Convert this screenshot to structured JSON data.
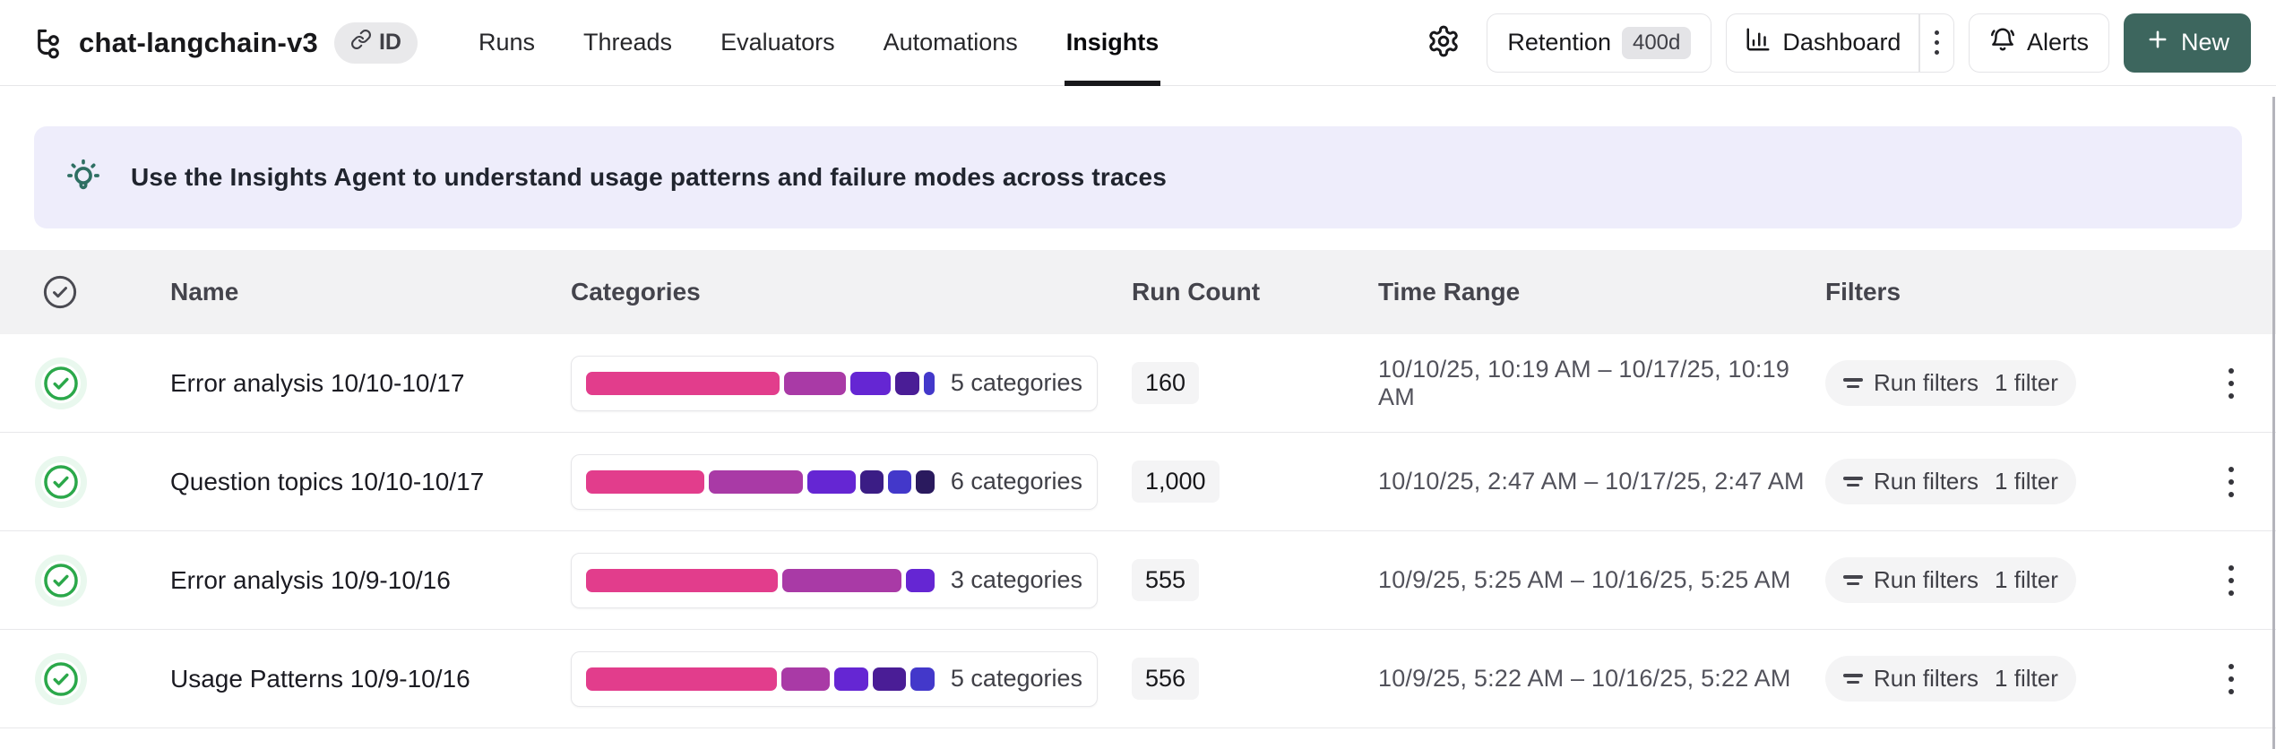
{
  "header": {
    "title": "chat-langchain-v3",
    "id_badge_label": "ID",
    "tabs": [
      {
        "label": "Runs",
        "active": false
      },
      {
        "label": "Threads",
        "active": false
      },
      {
        "label": "Evaluators",
        "active": false
      },
      {
        "label": "Automations",
        "active": false
      },
      {
        "label": "Insights",
        "active": true
      }
    ],
    "actions": {
      "retention_label": "Retention",
      "retention_value": "400d",
      "dashboard_label": "Dashboard",
      "alerts_label": "Alerts",
      "new_label": "New"
    }
  },
  "banner": {
    "text": "Use the Insights Agent to understand usage patterns and failure modes across traces"
  },
  "table": {
    "columns": {
      "name": "Name",
      "categories": "Categories",
      "run_count": "Run Count",
      "time_range": "Time Range",
      "filters": "Filters"
    },
    "rows": [
      {
        "name": "Error analysis 10/10-10/17",
        "categories_label": "5 categories",
        "run_count": "160",
        "time_range": "10/10/25, 10:19 AM – 10/17/25, 10:19 AM",
        "filters_label": "Run filters",
        "filters_count": "1 filter",
        "segments": [
          {
            "color": "#e23d8c",
            "pct": 56
          },
          {
            "color": "#a93aa6",
            "pct": 18
          },
          {
            "color": "#6526d3",
            "pct": 11.5
          },
          {
            "color": "#4a1d96",
            "pct": 7
          },
          {
            "color": "#4338ca",
            "pct": 3.2
          }
        ]
      },
      {
        "name": "Question topics 10/10-10/17",
        "categories_label": "6 categories",
        "run_count": "1,000",
        "time_range": "10/10/25, 2:47 AM – 10/17/25, 2:47 AM",
        "filters_label": "Run filters",
        "filters_count": "1 filter",
        "segments": [
          {
            "color": "#e23d8c",
            "pct": 34
          },
          {
            "color": "#a93aa6",
            "pct": 27
          },
          {
            "color": "#6526d3",
            "pct": 14
          },
          {
            "color": "#3b1d85",
            "pct": 6.8
          },
          {
            "color": "#4338ca",
            "pct": 6.5
          },
          {
            "color": "#2a1a5e",
            "pct": 5.5
          }
        ]
      },
      {
        "name": "Error analysis 10/9-10/16",
        "categories_label": "3 categories",
        "run_count": "555",
        "time_range": "10/9/25, 5:25 AM – 10/16/25, 5:25 AM",
        "filters_label": "Run filters",
        "filters_count": "1 filter",
        "segments": [
          {
            "color": "#e23d8c",
            "pct": 55
          },
          {
            "color": "#a93aa6",
            "pct": 34
          },
          {
            "color": "#6526d3",
            "pct": 8.2
          }
        ]
      },
      {
        "name": "Usage Patterns 10/9-10/16",
        "categories_label": "5 categories",
        "run_count": "556",
        "time_range": "10/9/25, 5:22 AM – 10/16/25, 5:22 AM",
        "filters_label": "Run filters",
        "filters_count": "1 filter",
        "segments": [
          {
            "color": "#e23d8c",
            "pct": 55
          },
          {
            "color": "#a93aa6",
            "pct": 14
          },
          {
            "color": "#6526d3",
            "pct": 9.7
          },
          {
            "color": "#4a1d96",
            "pct": 9.5
          },
          {
            "color": "#4338ca",
            "pct": 7
          }
        ]
      }
    ]
  },
  "colors": {
    "new_button": "#3d665e",
    "banner_bg": "#eeedfb",
    "banner_icon": "#2e6f63",
    "header_row_bg": "#f2f2f3",
    "pill_bg": "#f4f4f5",
    "border": "#e4e4e7",
    "check_green": "#2ba84a",
    "scrollbar": "#b4b4bb"
  }
}
